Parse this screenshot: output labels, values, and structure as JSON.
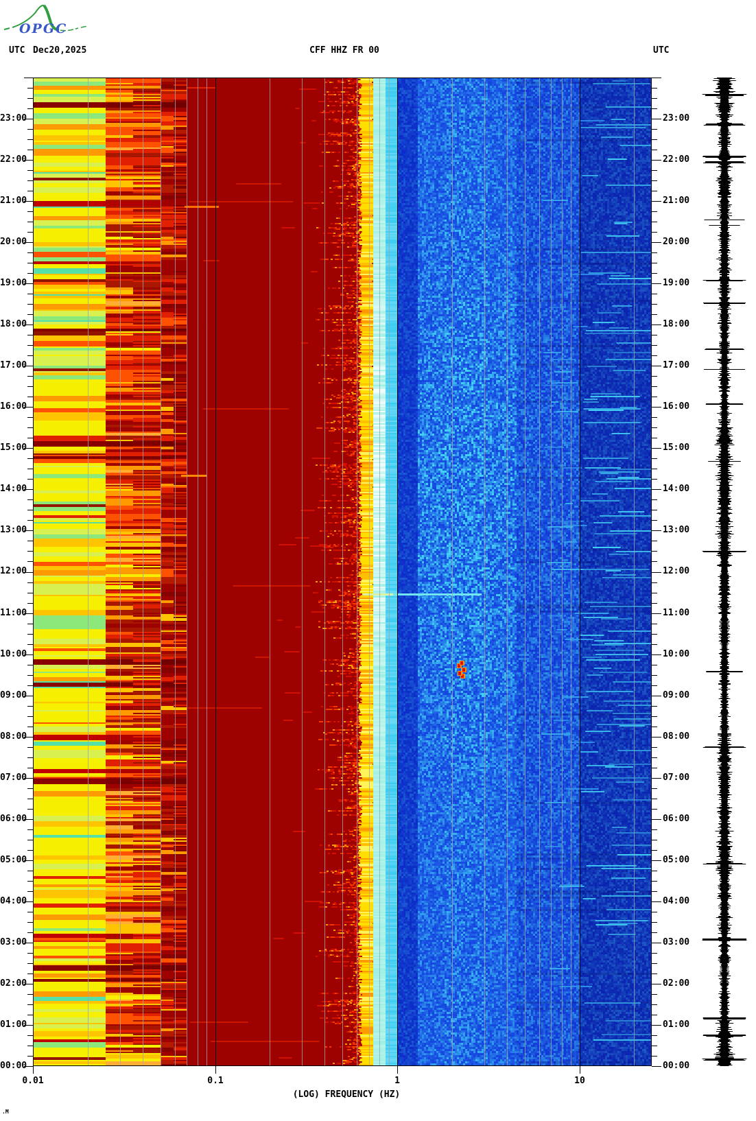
{
  "logo": {
    "text": "OPGC",
    "curve_color": "#2f9e3f",
    "text_color": "#3a57c8"
  },
  "header": {
    "utc_left": "UTC",
    "date": "Dec20,2025",
    "title": "CFF HHZ FR 00",
    "utc_right": "UTC"
  },
  "footer_mark": ".M",
  "chart_data": {
    "type": "heatmap",
    "title": "CFF HHZ FR 00",
    "station": "CFF",
    "channel": "HHZ",
    "network": "FR",
    "location": "00",
    "date_utc": "Dec20,2025",
    "xlabel": "(LOG) FREQUENCY (HZ)",
    "x_scale": "log",
    "x_range_hz": [
      0.01,
      25
    ],
    "x_tick_values": [
      0.01,
      0.1,
      1,
      10
    ],
    "x_tick_labels": [
      "0.01",
      "0.1",
      "1",
      "10"
    ],
    "y_axis": "UTC time of day, 00:00 at bottom to 24:00 at top",
    "y_tick_interval_minutes": 15,
    "hour_labels": [
      "23:00",
      "22:00",
      "21:00",
      "20:00",
      "19:00",
      "18:00",
      "17:00",
      "16:00",
      "15:00",
      "14:00",
      "13:00",
      "12:00",
      "11:00",
      "10:00",
      "09:00",
      "08:00",
      "07:00",
      "06:00",
      "05:00",
      "04:00",
      "03:00",
      "02:00",
      "01:00",
      "00:00"
    ],
    "grid": "gray minor log gridlines at 2-9 of each decade, black lines at 0.1, 1 and 10 Hz",
    "legend_position": "none",
    "regions": [
      {
        "freq_hz": [
          0.01,
          0.025
        ],
        "description": "horizontal banded stripes: yellow / yellow-green / green / orange / red"
      },
      {
        "freq_hz": [
          0.025,
          0.07
        ],
        "description": "horizontal banded stripes: orange / red / dark red"
      },
      {
        "freq_hz": [
          0.07,
          0.45
        ],
        "description": "saturated uniform dark red (maximum power)"
      },
      {
        "freq_hz": [
          0.45,
          0.65
        ],
        "description": "speckled red-orange transition with jagged leftward spikes"
      },
      {
        "freq_hz": [
          0.65,
          0.75
        ],
        "description": "narrow yellow ridge (secondary microseism peak)"
      },
      {
        "freq_hz": [
          0.75,
          1.0
        ],
        "description": "bright cyan band, whitens around mid-day"
      },
      {
        "freq_hz": [
          1.0,
          4.5
        ],
        "description": "blue with bright cyan mottling, brightest near 2-4 Hz"
      },
      {
        "freq_hz": [
          4.5,
          10
        ],
        "description": "royal blue with moderate cyan speckle"
      },
      {
        "freq_hz": [
          10,
          25
        ],
        "description": "dark blue with intermittent horizontal cyan streaks"
      }
    ],
    "events": [
      {
        "type": "tremor-dots",
        "times_utc": [
          "09:29",
          "09:33",
          "09:38",
          "09:44",
          "09:48"
        ],
        "dot_freqs_hz": [
          2.28,
          2.2,
          2.32,
          2.18,
          2.25
        ],
        "color": "#e01000",
        "halo": "#ff9000"
      },
      {
        "type": "horizontal-streak",
        "time_utc": "11:28",
        "freq_hz": [
          0.65,
          2.9
        ],
        "head_to_hz": 0.95,
        "head_color": "#d8f2a6",
        "color": "#74e6ee",
        "thickness": 3
      },
      {
        "type": "horizontal-line",
        "time_utc": "20:52",
        "freq_hz": [
          0.068,
          0.105
        ],
        "color": "#ff7000",
        "thickness": 3
      },
      {
        "type": "horizontal-line",
        "time_utc": "14:20",
        "freq_hz": [
          0.065,
          0.09
        ],
        "color": "#ff8800",
        "thickness": 3
      },
      {
        "type": "horizontal-line",
        "time_utc": "23:45",
        "freq_hz": [
          0.07,
          0.1
        ],
        "color": "#e02000",
        "thickness": 2
      }
    ],
    "seismogram": {
      "position": "right-margin",
      "color": "#000000",
      "spike_times_utc": [
        "23:35",
        "22:52",
        "22:05",
        "21:57",
        "19:05",
        "18:32",
        "17:25",
        "16:05",
        "12:30",
        "09:35",
        "07:45",
        "04:55",
        "03:05",
        "01:10",
        "00:45",
        "00:10"
      ]
    },
    "palette": {
      "maroon": "#9e0200",
      "red": "#e02000",
      "orange_red": "#ff5200",
      "orange": "#ff9a00",
      "amber": "#ffc400",
      "yellow": "#f6f000",
      "yellow_green": "#d8f050",
      "green": "#8ce87a",
      "teal": "#55e0a8",
      "cyan_pale": "#9cf0e4",
      "cyan": "#38cdf2",
      "blue": "#1545e0",
      "blue_mid": "#1139d6",
      "blue_dark": "#0c2cc8",
      "navy": "#0b24b0",
      "speckle_cyan": "#45d8f8",
      "grid_gray": "#a0a4ac",
      "axis_black": "#000000",
      "background": "#ffffff"
    }
  }
}
